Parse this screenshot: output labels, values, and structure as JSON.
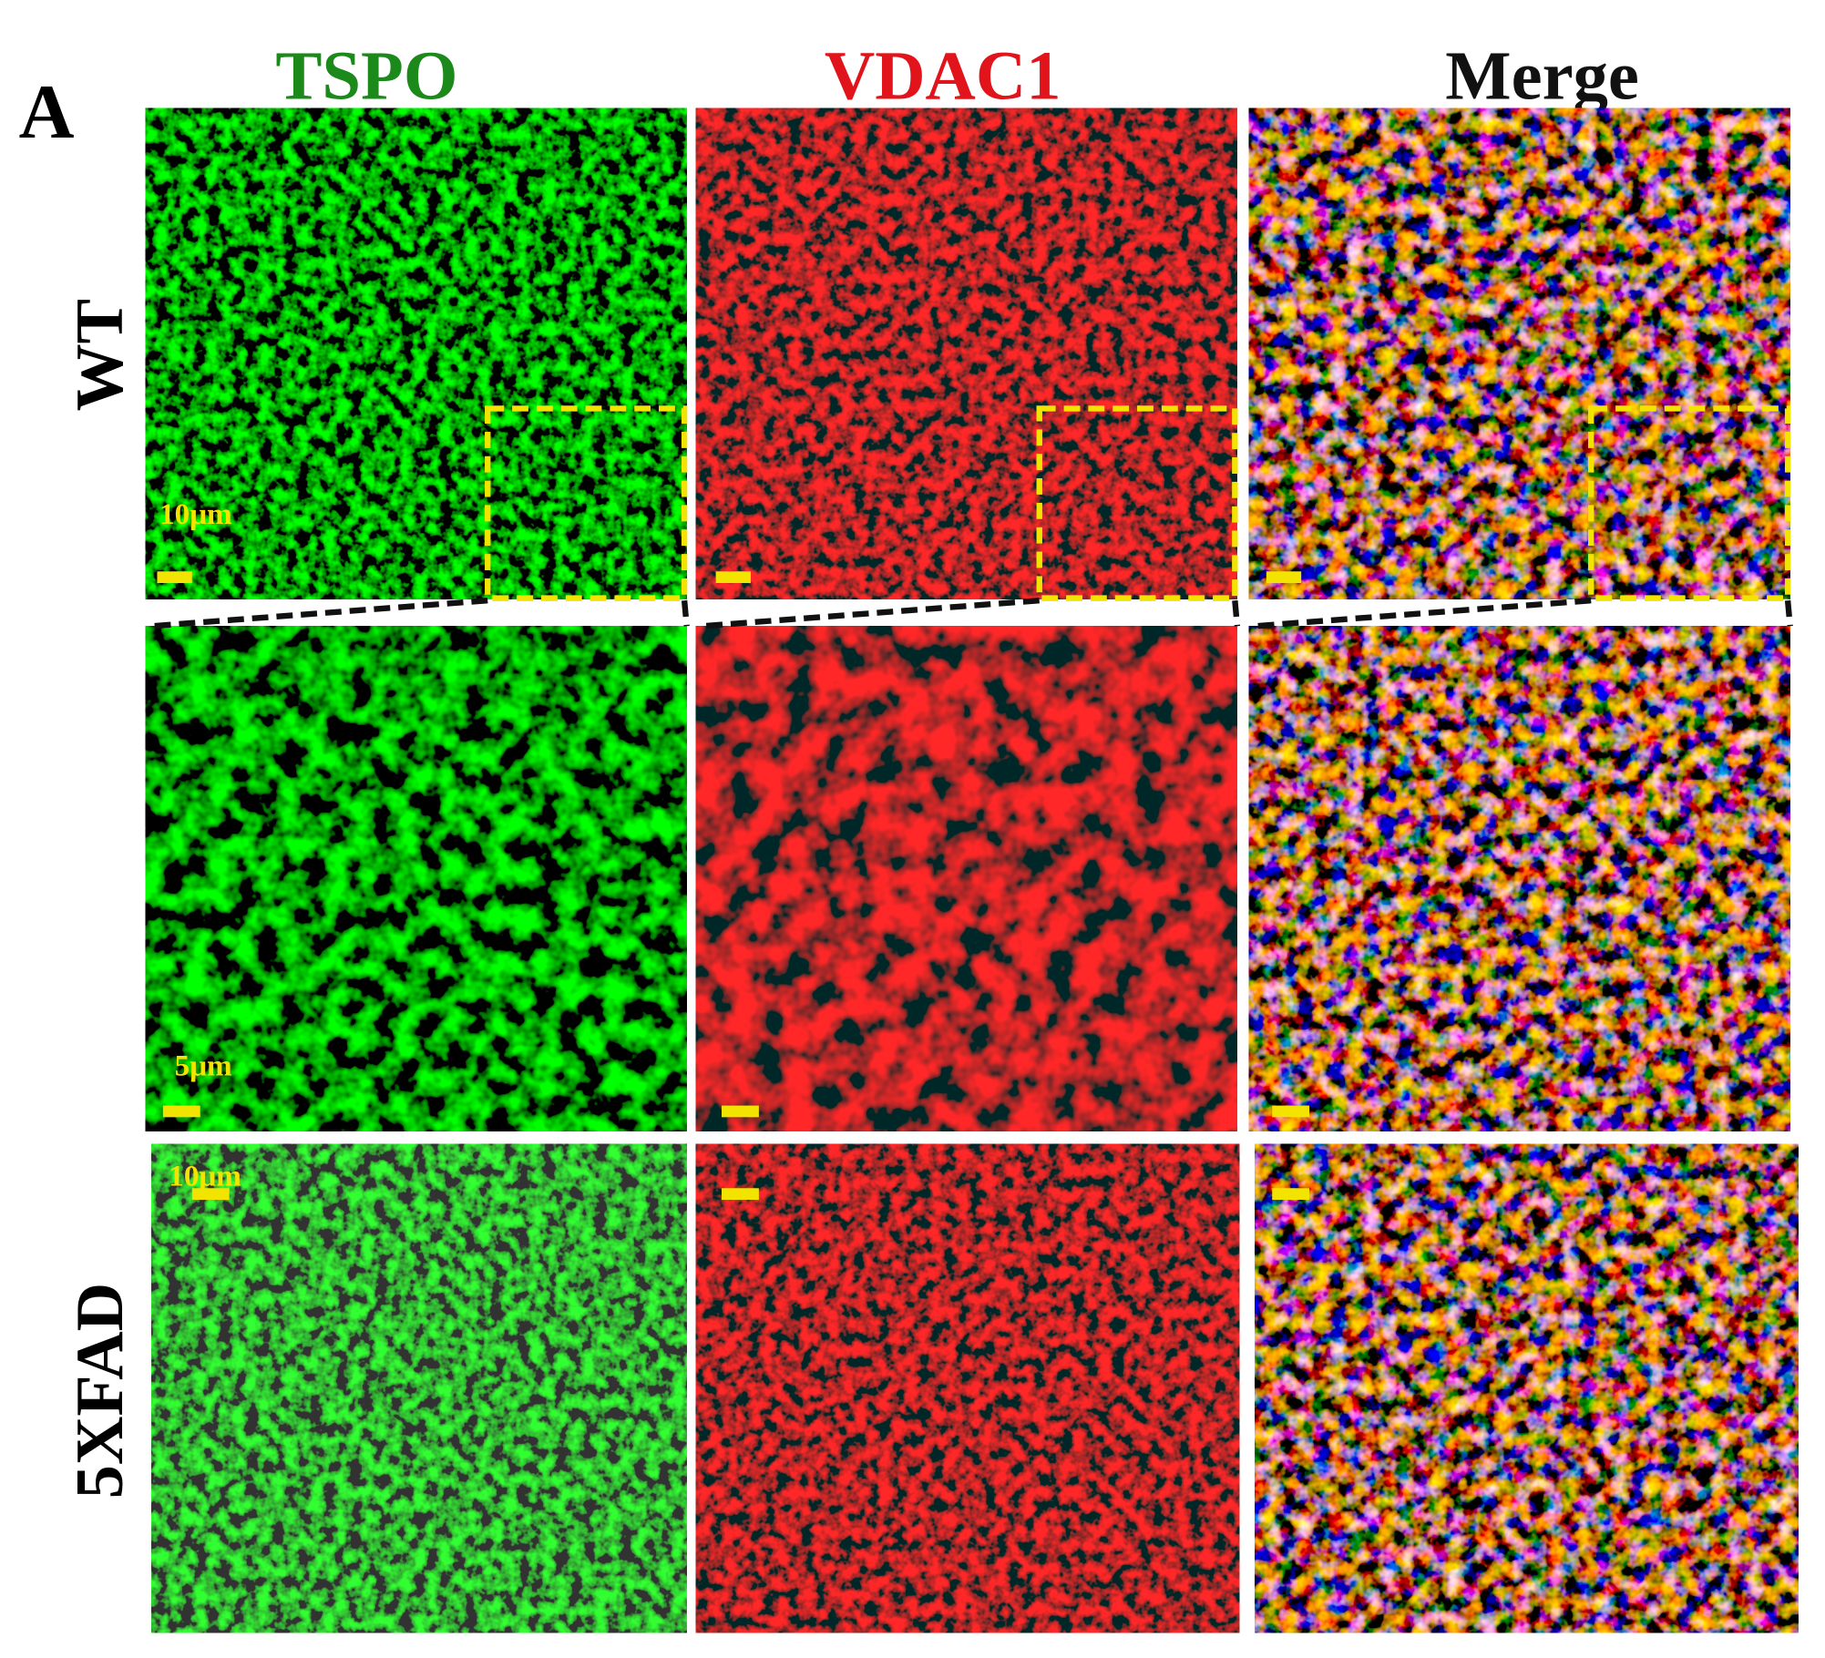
{
  "panel_label": "A",
  "columns": [
    "TSPO",
    "VDAC1",
    "Merge"
  ],
  "rows": [
    "WT",
    "5XFAD"
  ],
  "scale_labels": [
    "10μm",
    "5μm",
    "10μm"
  ]
}
